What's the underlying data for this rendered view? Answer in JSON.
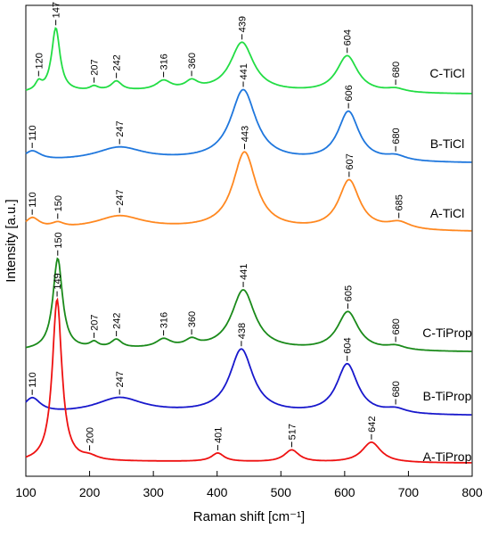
{
  "chart_data": {
    "type": "line",
    "title": "",
    "xlabel": "Raman shift [cm⁻¹]",
    "ylabel": "Intensity [a.u.]",
    "xlim": [
      100,
      800
    ],
    "xticks": [
      100,
      200,
      300,
      400,
      500,
      600,
      700,
      800
    ],
    "grid": false,
    "series": [
      {
        "name": "C-TiCl",
        "color": "#22dd44",
        "baseline": 0.2,
        "noise": 0.25,
        "peaks": [
          [
            120,
            0.8,
            6
          ],
          [
            147,
            6.2,
            8
          ],
          [
            207,
            0.4,
            8
          ],
          [
            242,
            0.9,
            10
          ],
          [
            316,
            0.9,
            14
          ],
          [
            360,
            0.8,
            12
          ],
          [
            439,
            4.8,
            22
          ],
          [
            604,
            3.6,
            20
          ],
          [
            680,
            0.35,
            18
          ]
        ],
        "labels": [
          [
            120,
            "120"
          ],
          [
            147,
            "147"
          ],
          [
            207,
            "207"
          ],
          [
            242,
            "242"
          ],
          [
            316,
            "316"
          ],
          [
            360,
            "360"
          ],
          [
            439,
            "439"
          ],
          [
            604,
            "604"
          ],
          [
            680,
            "680"
          ]
        ]
      },
      {
        "name": "B-TiCl",
        "color": "#1f77dd",
        "baseline": 0.1,
        "noise": 0.15,
        "peaks": [
          [
            110,
            0.6,
            16
          ],
          [
            247,
            0.8,
            45
          ],
          [
            441,
            4.4,
            24
          ],
          [
            606,
            3.1,
            20
          ],
          [
            680,
            0.3,
            20
          ]
        ],
        "labels": [
          [
            110,
            "110"
          ],
          [
            247,
            "247"
          ],
          [
            441,
            "441"
          ],
          [
            606,
            "606"
          ],
          [
            680,
            "680"
          ]
        ]
      },
      {
        "name": "A-TiCl",
        "color": "#ff8820",
        "baseline": 0.1,
        "noise": 0.15,
        "peaks": [
          [
            110,
            0.7,
            14
          ],
          [
            150,
            0.3,
            12
          ],
          [
            247,
            0.8,
            45
          ],
          [
            443,
            4.8,
            22
          ],
          [
            607,
            3.1,
            20
          ],
          [
            685,
            0.45,
            22
          ]
        ],
        "labels": [
          [
            110,
            "110"
          ],
          [
            150,
            "150"
          ],
          [
            247,
            "247"
          ],
          [
            443,
            "443"
          ],
          [
            607,
            "607"
          ],
          [
            685,
            "685"
          ]
        ]
      },
      {
        "name": "C-TiProp",
        "color": "#1a8a1a",
        "baseline": 0.2,
        "noise": 0.2,
        "peaks": [
          [
            150,
            6.6,
            9
          ],
          [
            207,
            0.4,
            8
          ],
          [
            242,
            0.6,
            10
          ],
          [
            316,
            0.6,
            14
          ],
          [
            360,
            0.5,
            12
          ],
          [
            441,
            4.3,
            22
          ],
          [
            605,
            2.8,
            20
          ],
          [
            680,
            0.3,
            18
          ]
        ],
        "labels": [
          [
            150,
            "150"
          ],
          [
            207,
            "207"
          ],
          [
            242,
            "242"
          ],
          [
            316,
            "316"
          ],
          [
            360,
            "360"
          ],
          [
            441,
            "441"
          ],
          [
            605,
            "605"
          ],
          [
            680,
            "680"
          ]
        ]
      },
      {
        "name": "B-TiProp",
        "color": "#1818cc",
        "baseline": 0.1,
        "noise": 0.15,
        "peaks": [
          [
            110,
            1.0,
            16
          ],
          [
            247,
            1.0,
            45
          ],
          [
            438,
            4.2,
            22
          ],
          [
            604,
            3.3,
            20
          ],
          [
            680,
            0.3,
            20
          ]
        ],
        "labels": [
          [
            110,
            "110"
          ],
          [
            247,
            "247"
          ],
          [
            438,
            "438"
          ],
          [
            604,
            "604"
          ],
          [
            680,
            "680"
          ]
        ]
      },
      {
        "name": "A-TiProp",
        "color": "#ee1111",
        "baseline": 0.05,
        "noise": 0.12,
        "peaks": [
          [
            149,
            13.5,
            9
          ],
          [
            200,
            0.3,
            15
          ],
          [
            401,
            0.7,
            12
          ],
          [
            517,
            1.0,
            14
          ],
          [
            642,
            1.7,
            18
          ]
        ],
        "labels": [
          [
            149,
            "149"
          ],
          [
            200,
            "200"
          ],
          [
            401,
            "401"
          ],
          [
            517,
            "517"
          ],
          [
            642,
            "642"
          ]
        ]
      }
    ]
  }
}
